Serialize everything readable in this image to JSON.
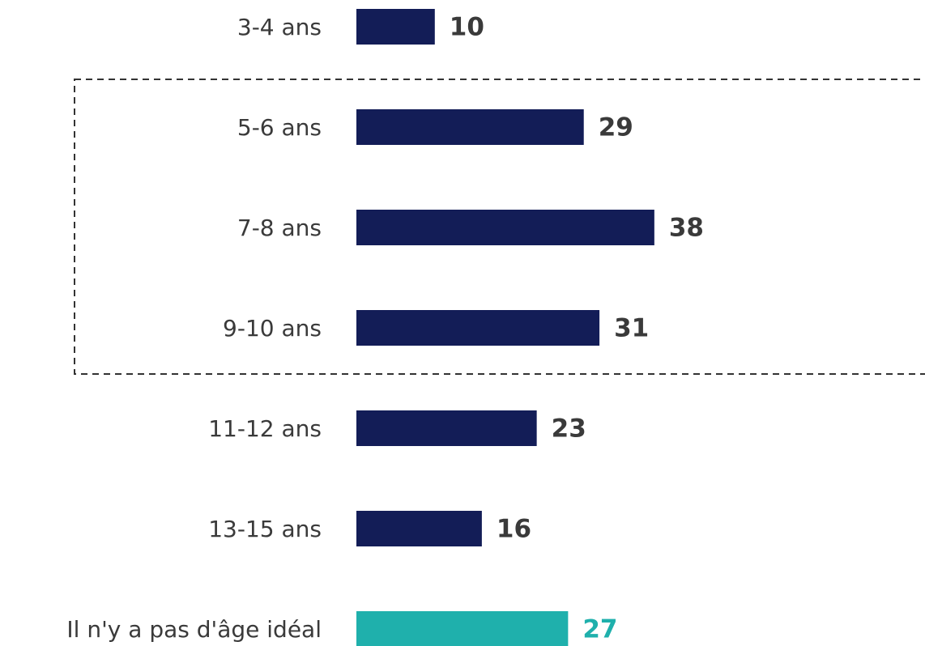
{
  "chart_data": {
    "type": "bar",
    "categories": [
      "3-4 ans",
      "5-6 ans",
      "7-8 ans",
      "9-10 ans",
      "11-12 ans",
      "13-15 ans",
      "Il n'y a pas d'âge idéal"
    ],
    "values": [
      10,
      29,
      38,
      31,
      23,
      16,
      27
    ],
    "colors": [
      "#131d57",
      "#131d57",
      "#131d57",
      "#131d57",
      "#131d57",
      "#131d57",
      "#1fb0ac"
    ],
    "value_label_colors": [
      "#3a3a3a",
      "#3a3a3a",
      "#3a3a3a",
      "#3a3a3a",
      "#3a3a3a",
      "#3a3a3a",
      "#1fb0ac"
    ]
  }
}
